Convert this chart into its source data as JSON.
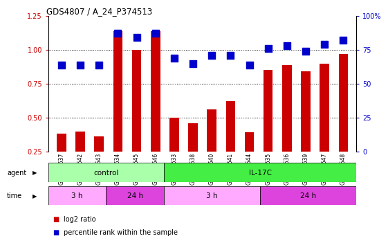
{
  "title": "GDS4807 / A_24_P374513",
  "samples": [
    "GSM808637",
    "GSM808642",
    "GSM808643",
    "GSM808634",
    "GSM808645",
    "GSM808646",
    "GSM808633",
    "GSM808638",
    "GSM808640",
    "GSM808641",
    "GSM808644",
    "GSM808635",
    "GSM808636",
    "GSM808639",
    "GSM808647",
    "GSM808648"
  ],
  "log2_ratio": [
    0.38,
    0.4,
    0.36,
    1.14,
    1.0,
    1.14,
    0.5,
    0.46,
    0.56,
    0.62,
    0.39,
    0.85,
    0.89,
    0.84,
    0.9,
    0.97
  ],
  "percentile_pct": [
    64,
    64,
    64,
    87,
    84,
    87,
    69,
    65,
    71,
    71,
    64,
    76,
    78,
    74,
    79,
    82
  ],
  "bar_color": "#cc0000",
  "dot_color": "#0000cc",
  "ylim_left": [
    0.25,
    1.25
  ],
  "ylim_right": [
    0,
    100
  ],
  "yticks_left": [
    0.25,
    0.5,
    0.75,
    1.0,
    1.25
  ],
  "yticks_right": [
    0,
    25,
    50,
    75,
    100
  ],
  "ytick_labels_right": [
    "0",
    "25",
    "50",
    "75",
    "100%"
  ],
  "agent_groups": [
    {
      "label": "control",
      "start": 0,
      "end": 6,
      "color": "#aaffaa"
    },
    {
      "label": "IL-17C",
      "start": 6,
      "end": 16,
      "color": "#44ee44"
    }
  ],
  "time_groups": [
    {
      "label": "3 h",
      "start": 0,
      "end": 3,
      "color": "#ffaaff"
    },
    {
      "label": "24 h",
      "start": 3,
      "end": 6,
      "color": "#dd44dd"
    },
    {
      "label": "3 h",
      "start": 6,
      "end": 11,
      "color": "#ffaaff"
    },
    {
      "label": "24 h",
      "start": 11,
      "end": 16,
      "color": "#dd44dd"
    }
  ],
  "bg_color": "#ffffff",
  "bar_width": 0.5,
  "dot_size": 55
}
